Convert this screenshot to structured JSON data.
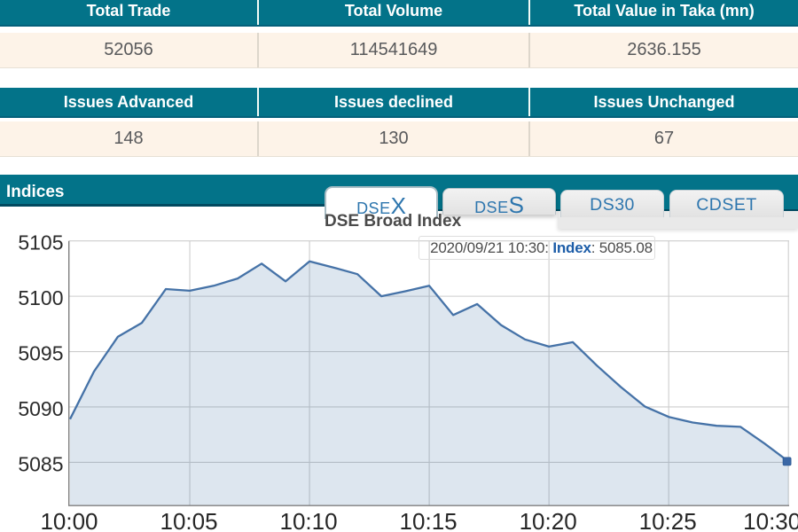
{
  "summary_tables": [
    {
      "headers": [
        "Total Trade",
        "Total Volume",
        "Total Value in Taka (mn)"
      ],
      "values": [
        "52056",
        "114541649",
        "2636.155"
      ]
    },
    {
      "headers": [
        "Issues Advanced",
        "Issues declined",
        "Issues Unchanged"
      ],
      "values": [
        "148",
        "130",
        "67"
      ]
    }
  ],
  "indices_section": {
    "title": "Indices",
    "tabs": [
      {
        "id": "dsex",
        "prefix": "DSE",
        "suffix": "X",
        "active": true
      },
      {
        "id": "dses",
        "prefix": "DSE",
        "suffix": "S",
        "active": false
      },
      {
        "id": "ds30",
        "label": "DS30",
        "active": false
      },
      {
        "id": "cdset",
        "label": "CDSET",
        "active": false
      }
    ]
  },
  "chart_data": {
    "type": "area",
    "title": "DSE Broad Index",
    "tooltip": {
      "datetime": "2020/09/21 10:30:",
      "series_label": "Index",
      "value": "5085.08"
    },
    "x": [
      "10:00",
      "10:01",
      "10:02",
      "10:03",
      "10:04",
      "10:05",
      "10:06",
      "10:07",
      "10:08",
      "10:09",
      "10:10",
      "10:11",
      "10:12",
      "10:13",
      "10:14",
      "10:15",
      "10:16",
      "10:17",
      "10:18",
      "10:19",
      "10:20",
      "10:21",
      "10:22",
      "10:23",
      "10:24",
      "10:25",
      "10:26",
      "10:27",
      "10:28",
      "10:29",
      "10:30"
    ],
    "values": [
      5088.9,
      5093.2,
      5096.35,
      5097.6,
      5100.65,
      5100.5,
      5100.95,
      5101.6,
      5102.95,
      5101.35,
      5103.15,
      5102.6,
      5102.0,
      5100.0,
      5100.45,
      5100.95,
      5098.3,
      5099.3,
      5097.4,
      5096.1,
      5095.45,
      5095.85,
      5093.75,
      5091.8,
      5090.05,
      5089.1,
      5088.6,
      5088.3,
      5088.2,
      5086.7,
      5085.08
    ],
    "x_ticks": [
      "10:00",
      "10:05",
      "10:10",
      "10:15",
      "10:20",
      "10:25",
      "10:30"
    ],
    "y_ticks": [
      5085,
      5090,
      5095,
      5100,
      5105
    ],
    "ylim": [
      5081.1,
      5105
    ],
    "xlabel": "",
    "ylabel": "",
    "grid": true,
    "legend": false,
    "line_color": "#4572a7",
    "fill_color": "rgba(69,114,167,0.18)",
    "marker_color": "#3a67a5"
  },
  "colors": {
    "header_teal": "#037389",
    "header_teal_dark": "#04607a",
    "row_cream": "#fdf3e8",
    "tab_text_blue": "#2e76ae",
    "grid_gray": "#cdcdcd",
    "axis_gray": "#7f7f7f"
  }
}
